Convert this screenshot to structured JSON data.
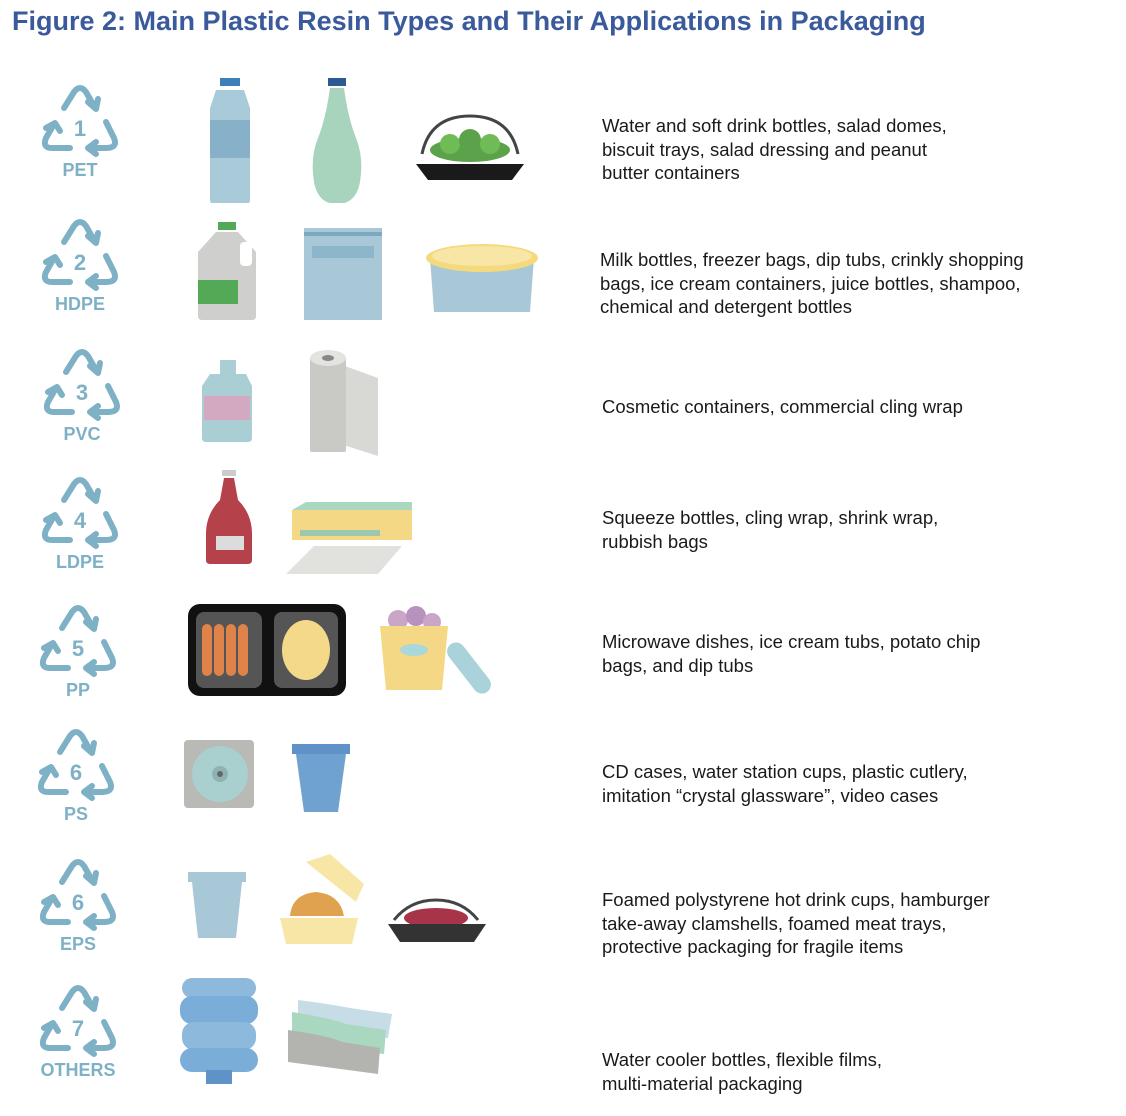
{
  "title": "Figure 2: Main Plastic Resin Types and Their Applications in Packaging",
  "colors": {
    "title": "#3a5a9b",
    "symbol": "#7fb1c6",
    "text": "#1a1a1a"
  },
  "resins": [
    {
      "number": "1",
      "code": "PET",
      "icons": [
        "water-bottle-icon",
        "soft-drink-bottle-icon",
        "salad-dome-icon"
      ],
      "description": "Water and soft drink bottles, salad domes,\nbiscuit trays, salad dressing and peanut\nbutter containers"
    },
    {
      "number": "2",
      "code": "HDPE",
      "icons": [
        "milk-jug-icon",
        "freezer-bag-icon",
        "ice-cream-tub-icon"
      ],
      "description": "Milk bottles, freezer bags, dip tubs, crinkly shopping\nbags, ice cream containers, juice bottles, shampoo,\nchemical and detergent bottles"
    },
    {
      "number": "3",
      "code": "PVC",
      "icons": [
        "cosmetic-bottle-icon",
        "cling-wrap-roll-icon"
      ],
      "description": "Cosmetic containers, commercial cling wrap"
    },
    {
      "number": "4",
      "code": "LDPE",
      "icons": [
        "squeeze-bottle-icon",
        "cling-wrap-box-icon"
      ],
      "description": "Squeeze bottles, cling wrap, shrink wrap,\nrubbish bags"
    },
    {
      "number": "5",
      "code": "PP",
      "icons": [
        "microwave-tray-icon",
        "ice-cream-tub-lid-icon"
      ],
      "description": "Microwave dishes, ice cream tubs, potato chip\nbags, and dip tubs"
    },
    {
      "number": "6",
      "code": "PS",
      "icons": [
        "cd-case-icon",
        "plastic-cup-icon"
      ],
      "description": "CD cases, water station cups, plastic cutlery,\nimitation “crystal glassware”, video cases"
    },
    {
      "number": "6",
      "code": "EPS",
      "icons": [
        "foam-cup-icon",
        "burger-clamshell-icon",
        "meat-tray-icon"
      ],
      "description": "Foamed polystyrene hot drink cups, hamburger\ntake-away clamshells, foamed meat trays,\nprotective packaging for fragile items"
    },
    {
      "number": "7",
      "code": "OTHERS",
      "icons": [
        "water-cooler-bottle-icon",
        "flexible-films-icon"
      ],
      "description": "Water cooler bottles, flexible films,\nmulti-material packaging"
    }
  ]
}
